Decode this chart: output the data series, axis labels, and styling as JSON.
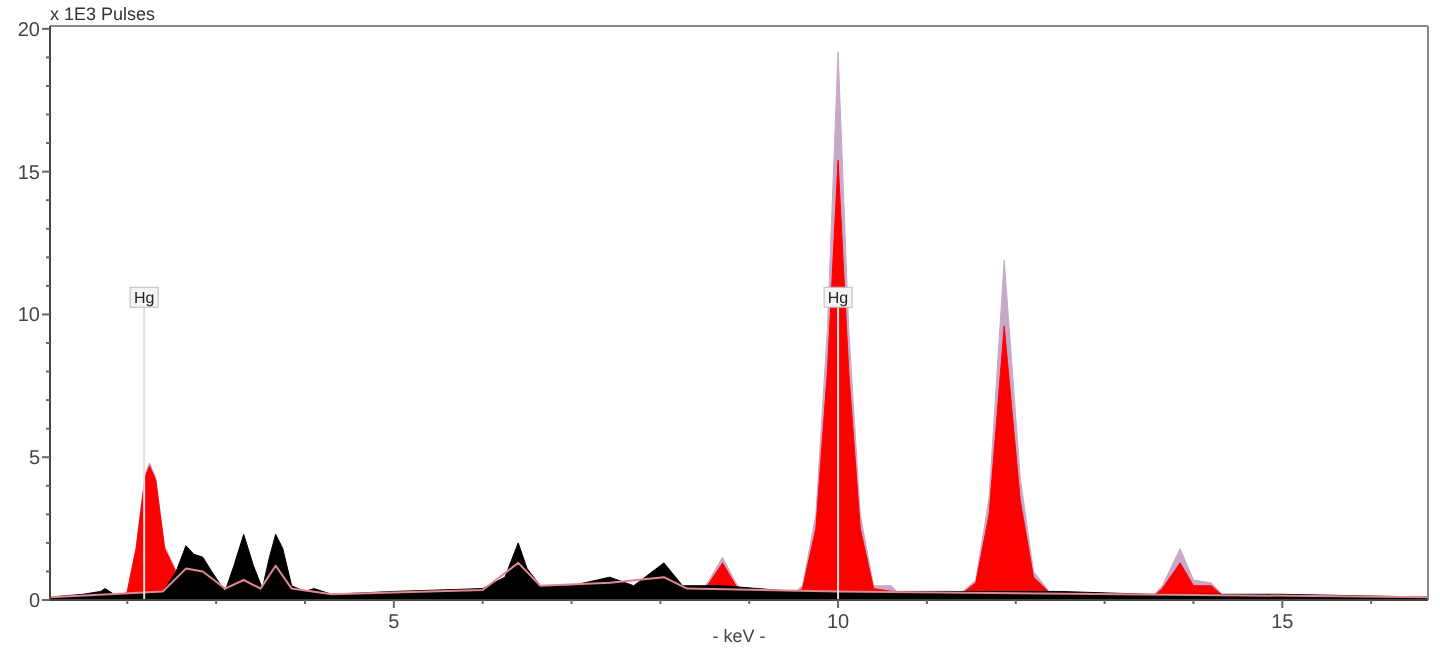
{
  "chart_data": {
    "type": "area",
    "ylabel": "x 1E3 Pulses",
    "xlabel": "- keV -",
    "xlim": [
      1.13,
      16.64
    ],
    "ylim": [
      0,
      20.1
    ],
    "xticks": [
      {
        "value": 2,
        "label": null
      },
      {
        "value": 3,
        "label": null
      },
      {
        "value": 4,
        "label": null
      },
      5,
      {
        "value": 6,
        "label": null
      },
      {
        "value": 7,
        "label": null
      },
      {
        "value": 8,
        "label": null
      },
      {
        "value": 9,
        "label": null
      },
      10,
      {
        "value": 11,
        "label": null
      },
      {
        "value": 12,
        "label": null
      },
      {
        "value": 13,
        "label": null
      },
      {
        "value": 14,
        "label": null
      },
      15,
      {
        "value": 16,
        "label": null
      }
    ],
    "yticks": [
      0,
      {
        "value": 1,
        "label": null
      },
      {
        "value": 2,
        "label": null
      },
      {
        "value": 3,
        "label": null
      },
      {
        "value": 4,
        "label": null
      },
      5,
      {
        "value": 6,
        "label": null
      },
      {
        "value": 7,
        "label": null
      },
      {
        "value": 8,
        "label": null
      },
      {
        "value": 9,
        "label": null
      },
      10,
      {
        "value": 11,
        "label": null
      },
      {
        "value": 12,
        "label": null
      },
      {
        "value": 13,
        "label": null
      },
      {
        "value": 14,
        "label": null
      },
      15,
      {
        "value": 16,
        "label": null
      },
      {
        "value": 17,
        "label": null
      },
      {
        "value": 18,
        "label": null
      },
      {
        "value": 19,
        "label": null
      },
      20
    ],
    "grid": false,
    "series": [
      {
        "color": "#c8a8c8",
        "x": [
          1.13,
          1.9,
          2.0,
          2.1,
          2.2,
          2.25,
          2.32,
          2.42,
          2.55,
          2.7,
          8.4,
          8.55,
          8.7,
          8.85,
          9.0,
          9.4,
          9.6,
          9.75,
          9.88,
          10.0,
          10.12,
          10.25,
          10.4,
          10.6,
          10.75,
          11.3,
          11.55,
          11.7,
          11.87,
          12.05,
          12.2,
          12.4,
          12.6,
          13.5,
          13.65,
          13.85,
          14.0,
          14.2,
          14.35,
          14.5,
          16.64
        ],
        "values": [
          0,
          0,
          0.3,
          1.9,
          4.4,
          4.8,
          4.3,
          1.9,
          null,
          0,
          0,
          0.7,
          1.5,
          0.6,
          0,
          0,
          0.5,
          3.0,
          9.5,
          19.2,
          9.5,
          3.0,
          0.5,
          0.5,
          0,
          0,
          0.7,
          3.6,
          11.9,
          4.3,
          1.0,
          0.2,
          0,
          0,
          0.5,
          1.8,
          0.7,
          0.6,
          0.1,
          0,
          0
        ]
      },
      {
        "color": "#ff0000",
        "x": [
          1.13,
          1.9,
          2.0,
          2.1,
          2.2,
          2.25,
          2.32,
          2.42,
          2.55,
          2.7,
          8.4,
          8.55,
          8.7,
          8.85,
          9.0,
          9.4,
          9.6,
          9.75,
          9.88,
          10.0,
          10.12,
          10.25,
          10.4,
          10.6,
          10.75,
          11.3,
          11.55,
          11.7,
          11.87,
          12.05,
          12.2,
          12.4,
          12.6,
          13.5,
          13.65,
          13.85,
          14.0,
          14.2,
          14.35,
          14.5,
          16.64
        ],
        "values": [
          0,
          0,
          0.3,
          1.8,
          4.3,
          4.7,
          4.2,
          1.8,
          null,
          0,
          0,
          0.6,
          1.3,
          0.5,
          0,
          0,
          0.4,
          2.5,
          8.0,
          15.4,
          8.0,
          2.5,
          0.4,
          0.3,
          0,
          0,
          0.6,
          3.0,
          9.6,
          3.5,
          0.8,
          0.2,
          0,
          0,
          0.4,
          1.3,
          0.5,
          0.5,
          0.1,
          0,
          0
        ]
      },
      {
        "color": "#000000",
        "x": [
          1.13,
          1.5,
          1.7,
          1.75,
          1.85,
          2.0,
          2.4,
          2.55,
          2.66,
          2.75,
          2.85,
          2.95,
          3.1,
          3.2,
          3.31,
          3.42,
          3.52,
          3.6,
          3.67,
          3.75,
          3.85,
          4.0,
          4.1,
          4.3,
          5.0,
          6.0,
          6.25,
          6.4,
          6.5,
          6.65,
          7.0,
          7.43,
          7.7,
          8.04,
          8.25,
          8.7,
          9.5,
          10.0,
          10.6,
          11.5,
          12.5,
          13.5,
          15.0,
          16.64
        ],
        "values": [
          0.1,
          0.2,
          0.3,
          0.4,
          0.2,
          0.2,
          0.3,
          1.0,
          1.9,
          1.6,
          1.5,
          1.0,
          0.3,
          1.2,
          2.3,
          1.2,
          0.4,
          1.5,
          2.3,
          1.8,
          0.5,
          0.3,
          0.4,
          0.2,
          0.3,
          0.4,
          0.8,
          2.0,
          1.1,
          0.5,
          0.5,
          0.8,
          0.5,
          1.3,
          0.5,
          0.5,
          0.3,
          0.3,
          0.3,
          0.3,
          0.3,
          0.2,
          0.2,
          0.1
        ]
      },
      {
        "type": "line",
        "color": "#e08890",
        "x": [
          1.13,
          2.4,
          2.66,
          2.85,
          3.1,
          3.31,
          3.5,
          3.67,
          3.85,
          4.3,
          6.0,
          6.4,
          6.65,
          7.43,
          8.04,
          8.3,
          10.0,
          16.64
        ],
        "values": [
          0.1,
          0.3,
          1.1,
          1.0,
          0.4,
          0.7,
          0.4,
          1.2,
          0.4,
          0.2,
          0.35,
          1.3,
          0.5,
          0.6,
          0.8,
          0.4,
          0.3,
          0.1
        ]
      }
    ],
    "ref_lines": [
      {
        "axis": "x",
        "value": 2.19,
        "label": "Hg",
        "color": "#e0e0e0"
      },
      {
        "axis": "x",
        "value": 10.0,
        "label": "Hg",
        "color": "#e0e0e0"
      }
    ]
  }
}
